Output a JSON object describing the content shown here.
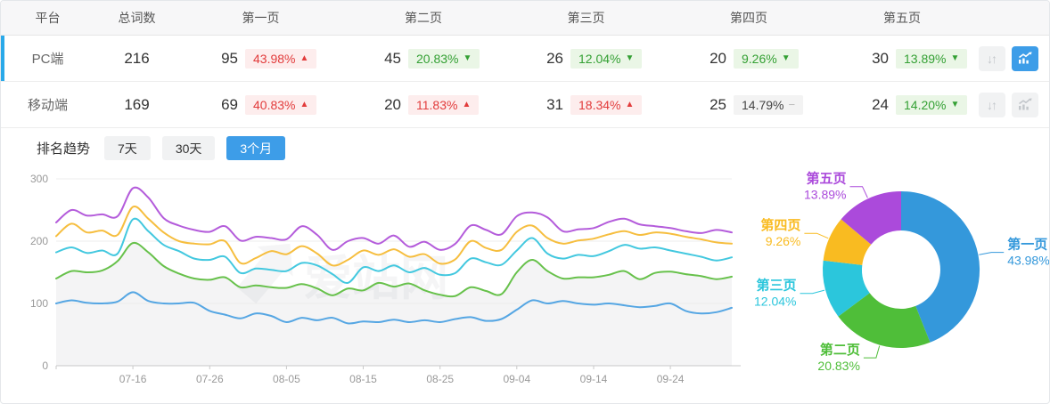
{
  "accent": {
    "primary_blue": "#3d9de8",
    "row_select_blue": "#29a9e9",
    "up_red": "#e23c3c",
    "down_green": "#34a034"
  },
  "table": {
    "headers": [
      "平台",
      "总词数",
      "第一页",
      "第二页",
      "第三页",
      "第四页",
      "第五页"
    ],
    "rows": [
      {
        "platform": "PC端",
        "total": "216",
        "selected": true,
        "chart_active": true,
        "pages": [
          {
            "count": "95",
            "pct": "43.98%",
            "arrow": "▲",
            "tone": "red"
          },
          {
            "count": "45",
            "pct": "20.83%",
            "arrow": "▼",
            "tone": "green"
          },
          {
            "count": "26",
            "pct": "12.04%",
            "arrow": "▼",
            "tone": "green"
          },
          {
            "count": "20",
            "pct": "9.26%",
            "arrow": "▼",
            "tone": "green"
          },
          {
            "count": "30",
            "pct": "13.89%",
            "arrow": "▼",
            "tone": "green"
          }
        ]
      },
      {
        "platform": "移动端",
        "total": "169",
        "selected": false,
        "chart_active": false,
        "pages": [
          {
            "count": "69",
            "pct": "40.83%",
            "arrow": "▲",
            "tone": "red"
          },
          {
            "count": "20",
            "pct": "11.83%",
            "arrow": "▲",
            "tone": "red"
          },
          {
            "count": "31",
            "pct": "18.34%",
            "arrow": "▲",
            "tone": "red"
          },
          {
            "count": "25",
            "pct": "14.79%",
            "arrow": "−",
            "tone": "gray"
          },
          {
            "count": "24",
            "pct": "14.20%",
            "arrow": "▼",
            "tone": "green"
          }
        ]
      }
    ]
  },
  "trend": {
    "title": "排名趋势",
    "tabs": [
      {
        "label": "7天",
        "active": false
      },
      {
        "label": "30天",
        "active": false
      },
      {
        "label": "3个月",
        "active": true
      }
    ]
  },
  "watermark": "爱站网",
  "chart_data": [
    {
      "type": "line",
      "title": "排名趋势 3个月",
      "ylim": [
        0,
        300
      ],
      "y_ticks": [
        0,
        100,
        200,
        300
      ],
      "x_ticks": [
        "07-16",
        "07-26",
        "08-05",
        "08-15",
        "08-25",
        "09-04",
        "09-14",
        "09-24"
      ],
      "tick_indices": [
        5,
        10,
        15,
        20,
        25,
        30,
        35,
        40
      ],
      "grid": true,
      "series": [
        {
          "name": "第二页",
          "color": "#67c14b",
          "area": true,
          "values": [
            140,
            152,
            150,
            153,
            168,
            197,
            182,
            160,
            148,
            140,
            138,
            142,
            126,
            129,
            126,
            125,
            131,
            124,
            113,
            124,
            121,
            133,
            127,
            132,
            121,
            114,
            112,
            126,
            120,
            115,
            150,
            170,
            152,
            140,
            142,
            142,
            146,
            152,
            139,
            149,
            151,
            147,
            144,
            139,
            143
          ]
        },
        {
          "name": "第一页",
          "color": "#55a6e3",
          "area": false,
          "values": [
            100,
            105,
            101,
            100,
            103,
            118,
            104,
            100,
            100,
            101,
            88,
            82,
            76,
            84,
            80,
            70,
            77,
            73,
            77,
            68,
            71,
            70,
            74,
            70,
            73,
            70,
            75,
            78,
            72,
            75,
            90,
            105,
            100,
            104,
            100,
            98,
            100,
            97,
            94,
            96,
            100,
            88,
            84,
            86,
            93
          ]
        },
        {
          "name": "第三页",
          "color": "#43c8df",
          "area": false,
          "values": [
            182,
            190,
            181,
            185,
            180,
            235,
            216,
            194,
            184,
            172,
            170,
            175,
            149,
            156,
            154,
            152,
            165,
            161,
            147,
            133,
            158,
            152,
            161,
            150,
            157,
            146,
            149,
            172,
            166,
            162,
            185,
            205,
            180,
            172,
            178,
            176,
            184,
            194,
            188,
            190,
            185,
            180,
            175,
            169,
            174
          ]
        },
        {
          "name": "第四页",
          "color": "#f6be3f",
          "area": false,
          "values": [
            208,
            228,
            214,
            217,
            210,
            255,
            236,
            214,
            200,
            196,
            195,
            200,
            165,
            173,
            184,
            179,
            192,
            180,
            161,
            170,
            185,
            178,
            187,
            175,
            179,
            164,
            171,
            200,
            189,
            186,
            215,
            225,
            205,
            196,
            201,
            204,
            211,
            216,
            210,
            214,
            212,
            207,
            203,
            198,
            196
          ]
        },
        {
          "name": "第五页",
          "color": "#b45cdb",
          "area": false,
          "values": [
            230,
            250,
            241,
            243,
            240,
            285,
            270,
            237,
            225,
            218,
            215,
            224,
            201,
            207,
            205,
            203,
            224,
            210,
            186,
            200,
            205,
            196,
            209,
            191,
            199,
            186,
            196,
            225,
            218,
            211,
            240,
            246,
            238,
            216,
            219,
            221,
            231,
            236,
            227,
            224,
            221,
            216,
            213,
            218,
            214
          ]
        }
      ]
    },
    {
      "type": "pie",
      "donut": true,
      "slices": [
        {
          "label": "第一页",
          "pct": 43.98,
          "display": "43.98%",
          "color": "#3498db"
        },
        {
          "label": "第二页",
          "pct": 20.83,
          "display": "20.83%",
          "color": "#4fbe39"
        },
        {
          "label": "第三页",
          "pct": 12.04,
          "display": "12.04%",
          "color": "#2bc6dc"
        },
        {
          "label": "第四页",
          "pct": 9.26,
          "display": "9.26%",
          "color": "#f9bb21"
        },
        {
          "label": "第五页",
          "pct": 13.89,
          "display": "13.89%",
          "color": "#ab4adb"
        }
      ]
    }
  ]
}
